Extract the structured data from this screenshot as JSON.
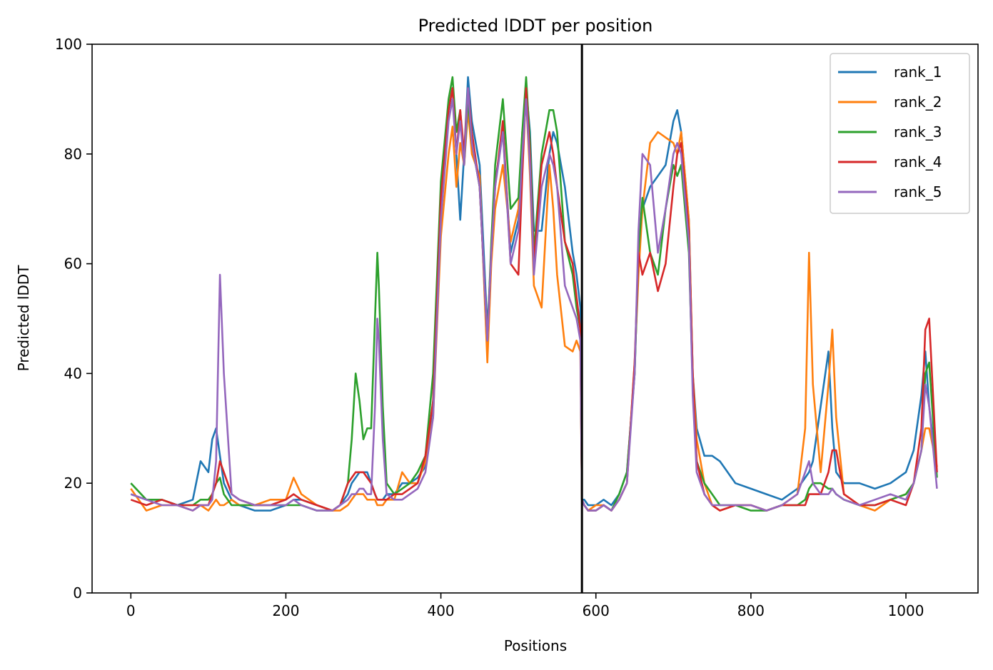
{
  "chart_data": {
    "type": "line",
    "title": "Predicted lDDT per position",
    "xlabel": "Positions",
    "ylabel": "Predicted lDDT",
    "xlim": [
      -50,
      1093
    ],
    "ylim": [
      0,
      100
    ],
    "xticks": [
      "0",
      "200",
      "400",
      "600",
      "800",
      "1000"
    ],
    "yticks": [
      "0",
      "20",
      "40",
      "60",
      "80",
      "100"
    ],
    "grid": false,
    "legend_position": "top-right",
    "divider_x": 582,
    "divider_color": "#000000",
    "x": [
      0,
      20,
      40,
      60,
      80,
      90,
      100,
      105,
      110,
      115,
      120,
      130,
      140,
      160,
      180,
      200,
      210,
      220,
      240,
      260,
      270,
      280,
      285,
      290,
      295,
      300,
      305,
      310,
      315,
      318,
      320,
      325,
      330,
      340,
      350,
      360,
      370,
      380,
      390,
      400,
      410,
      415,
      420,
      425,
      430,
      435,
      440,
      450,
      460,
      465,
      470,
      480,
      490,
      500,
      505,
      510,
      515,
      520,
      530,
      540,
      545,
      550,
      560,
      570,
      575,
      580,
      582,
      585,
      590,
      600,
      610,
      620,
      630,
      640,
      650,
      655,
      660,
      670,
      680,
      690,
      700,
      705,
      710,
      720,
      725,
      730,
      740,
      750,
      760,
      780,
      800,
      820,
      840,
      860,
      870,
      875,
      880,
      890,
      900,
      905,
      910,
      920,
      940,
      960,
      980,
      1000,
      1010,
      1020,
      1025,
      1030,
      1040
    ],
    "series": [
      {
        "name": "rank_1",
        "color": "#1f77b4",
        "values": [
          18,
          17,
          17,
          16,
          17,
          24,
          22,
          28,
          30,
          25,
          20,
          17,
          16,
          15,
          15,
          16,
          17,
          17,
          16,
          15,
          16,
          18,
          20,
          21,
          22,
          22,
          22,
          20,
          18,
          17,
          17,
          17,
          18,
          18,
          20,
          20,
          21,
          23,
          35,
          72,
          88,
          92,
          80,
          68,
          80,
          94,
          86,
          78,
          48,
          62,
          75,
          84,
          62,
          68,
          80,
          92,
          84,
          66,
          66,
          80,
          84,
          82,
          74,
          62,
          58,
          52,
          17,
          17,
          16,
          16,
          17,
          16,
          18,
          22,
          40,
          62,
          70,
          74,
          76,
          78,
          86,
          88,
          84,
          68,
          40,
          30,
          25,
          25,
          24,
          20,
          19,
          18,
          17,
          19,
          21,
          22,
          24,
          34,
          44,
          30,
          22,
          20,
          20,
          19,
          20,
          22,
          26,
          36,
          44,
          34,
          22
        ]
      },
      {
        "name": "rank_2",
        "color": "#ff7f0e",
        "values": [
          19,
          15,
          16,
          16,
          15,
          16,
          15,
          16,
          17,
          16,
          16,
          17,
          16,
          16,
          17,
          17,
          21,
          18,
          16,
          15,
          15,
          16,
          17,
          18,
          18,
          18,
          17,
          17,
          17,
          16,
          16,
          16,
          17,
          17,
          22,
          20,
          20,
          24,
          32,
          65,
          80,
          85,
          74,
          82,
          78,
          88,
          80,
          76,
          42,
          60,
          70,
          78,
          64,
          70,
          84,
          90,
          76,
          56,
          52,
          78,
          70,
          58,
          45,
          44,
          46,
          44,
          17,
          16,
          15,
          16,
          16,
          15,
          17,
          20,
          42,
          58,
          70,
          82,
          84,
          83,
          82,
          80,
          84,
          68,
          40,
          28,
          20,
          16,
          15,
          16,
          16,
          15,
          16,
          18,
          30,
          62,
          38,
          22,
          38,
          48,
          32,
          18,
          16,
          15,
          17,
          18,
          20,
          26,
          30,
          30,
          23
        ]
      },
      {
        "name": "rank_3",
        "color": "#2ca02c",
        "values": [
          20,
          17,
          17,
          16,
          16,
          17,
          17,
          18,
          20,
          21,
          18,
          16,
          16,
          16,
          16,
          16,
          16,
          16,
          15,
          15,
          16,
          20,
          28,
          40,
          35,
          28,
          30,
          30,
          50,
          62,
          56,
          34,
          20,
          18,
          19,
          20,
          22,
          25,
          40,
          75,
          90,
          94,
          84,
          88,
          78,
          90,
          82,
          74,
          46,
          64,
          78,
          90,
          70,
          72,
          84,
          94,
          82,
          62,
          80,
          88,
          88,
          84,
          64,
          58,
          52,
          48,
          17,
          16,
          15,
          15,
          16,
          15,
          18,
          22,
          40,
          62,
          72,
          62,
          58,
          70,
          78,
          76,
          78,
          62,
          38,
          24,
          20,
          18,
          16,
          16,
          15,
          15,
          16,
          16,
          17,
          19,
          20,
          20,
          19,
          19,
          18,
          17,
          16,
          16,
          17,
          18,
          20,
          26,
          40,
          42,
          21
        ]
      },
      {
        "name": "rank_4",
        "color": "#d62728",
        "values": [
          17,
          16,
          17,
          16,
          16,
          16,
          16,
          18,
          20,
          24,
          22,
          18,
          17,
          16,
          16,
          17,
          18,
          17,
          16,
          15,
          16,
          20,
          21,
          22,
          22,
          22,
          21,
          20,
          18,
          17,
          17,
          17,
          17,
          18,
          18,
          19,
          20,
          25,
          35,
          72,
          88,
          92,
          80,
          88,
          80,
          92,
          84,
          74,
          46,
          62,
          74,
          86,
          60,
          58,
          76,
          92,
          80,
          60,
          78,
          84,
          80,
          74,
          64,
          60,
          54,
          48,
          17,
          16,
          15,
          15,
          16,
          15,
          17,
          20,
          42,
          62,
          58,
          62,
          55,
          60,
          74,
          80,
          82,
          66,
          40,
          24,
          18,
          16,
          15,
          16,
          16,
          15,
          16,
          16,
          16,
          18,
          18,
          18,
          22,
          26,
          26,
          18,
          16,
          16,
          17,
          16,
          20,
          30,
          48,
          50,
          22
        ]
      },
      {
        "name": "rank_5",
        "color": "#9467bd",
        "values": [
          18,
          17,
          16,
          16,
          15,
          16,
          16,
          17,
          24,
          58,
          40,
          18,
          17,
          16,
          16,
          16,
          17,
          16,
          15,
          15,
          16,
          17,
          18,
          18,
          19,
          19,
          18,
          18,
          34,
          50,
          46,
          28,
          18,
          17,
          17,
          18,
          19,
          22,
          32,
          68,
          86,
          90,
          80,
          86,
          78,
          92,
          82,
          74,
          46,
          62,
          74,
          84,
          60,
          66,
          80,
          90,
          78,
          58,
          74,
          80,
          78,
          74,
          56,
          52,
          50,
          46,
          17,
          16,
          15,
          15,
          16,
          15,
          17,
          20,
          40,
          66,
          80,
          78,
          62,
          70,
          80,
          82,
          80,
          64,
          36,
          22,
          18,
          16,
          16,
          16,
          16,
          15,
          16,
          18,
          22,
          24,
          20,
          18,
          18,
          19,
          18,
          17,
          16,
          17,
          18,
          17,
          20,
          26,
          38,
          34,
          19
        ]
      }
    ]
  }
}
